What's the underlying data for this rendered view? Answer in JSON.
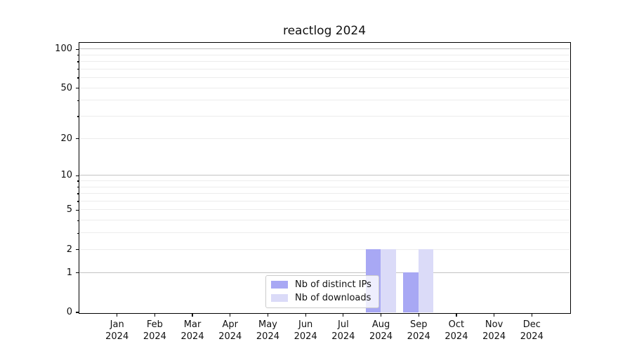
{
  "figure": {
    "title": "reactlog 2024"
  },
  "chart_data": {
    "type": "bar",
    "title": "reactlog 2024",
    "x_categories": [
      {
        "month": "Jan",
        "year": "2024"
      },
      {
        "month": "Feb",
        "year": "2024"
      },
      {
        "month": "Mar",
        "year": "2024"
      },
      {
        "month": "Apr",
        "year": "2024"
      },
      {
        "month": "May",
        "year": "2024"
      },
      {
        "month": "Jun",
        "year": "2024"
      },
      {
        "month": "Jul",
        "year": "2024"
      },
      {
        "month": "Aug",
        "year": "2024"
      },
      {
        "month": "Sep",
        "year": "2024"
      },
      {
        "month": "Oct",
        "year": "2024"
      },
      {
        "month": "Nov",
        "year": "2024"
      },
      {
        "month": "Dec",
        "year": "2024"
      }
    ],
    "series": [
      {
        "name": "Nb of distinct IPs",
        "color": "#a8a8f4",
        "values": [
          0,
          0,
          0,
          0,
          0,
          0,
          0,
          2,
          1,
          0,
          0,
          0
        ]
      },
      {
        "name": "Nb of downloads",
        "color": "#dbdbf8",
        "values": [
          0,
          0,
          0,
          0,
          0,
          0,
          0,
          2,
          2,
          0,
          0,
          0
        ]
      }
    ],
    "y_scale": "log1p",
    "ylim": [
      0,
      112
    ],
    "y_ticks_labeled": [
      0,
      1,
      2,
      5,
      10,
      20,
      50,
      100
    ],
    "y_ticks_minor": [
      3,
      4,
      6,
      7,
      8,
      9,
      30,
      40,
      60,
      70,
      80,
      90
    ],
    "y_gridlines_major": [
      1,
      10,
      100
    ],
    "y_gridlines_minor": [
      2,
      3,
      4,
      5,
      6,
      7,
      8,
      9,
      20,
      30,
      40,
      50,
      60,
      70,
      80,
      90
    ],
    "grid": "horizontal",
    "legend_position": "bottom-center"
  }
}
